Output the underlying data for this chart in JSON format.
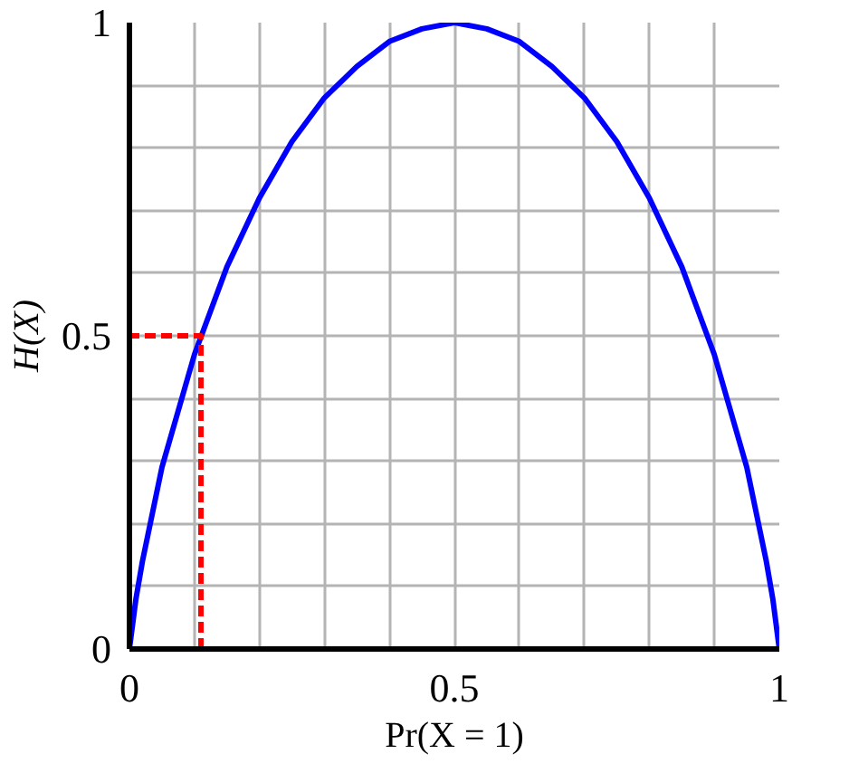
{
  "chart_data": {
    "type": "line",
    "xlabel": "Pr(X = 1)",
    "ylabel": "H(X)",
    "xlim": [
      0,
      1
    ],
    "ylim": [
      0,
      1
    ],
    "xticks": [
      0,
      {
        "value": 0.1,
        "label": null
      },
      {
        "value": 0.2,
        "label": null
      },
      {
        "value": 0.3,
        "label": null
      },
      {
        "value": 0.4,
        "label": null
      },
      0.5,
      {
        "value": 0.6,
        "label": null
      },
      {
        "value": 0.7,
        "label": null
      },
      {
        "value": 0.8,
        "label": null
      },
      {
        "value": 0.9,
        "label": null
      },
      1
    ],
    "yticks": [
      0,
      {
        "value": 0.1,
        "label": null
      },
      {
        "value": 0.2,
        "label": null
      },
      {
        "value": 0.3,
        "label": null
      },
      {
        "value": 0.4,
        "label": null
      },
      0.5,
      {
        "value": 0.6,
        "label": null
      },
      {
        "value": 0.7,
        "label": null
      },
      {
        "value": 0.8,
        "label": null
      },
      {
        "value": 0.9,
        "label": null
      },
      1
    ],
    "grid": true,
    "series": [
      {
        "color": "#0000ff",
        "line_style": "solid",
        "x": [
          0,
          0.01,
          0.02,
          0.05,
          0.1,
          0.15,
          0.2,
          0.25,
          0.3,
          0.35,
          0.4,
          0.45,
          0.5,
          0.55,
          0.6,
          0.65,
          0.7,
          0.75,
          0.8,
          0.85,
          0.9,
          0.95,
          0.98,
          0.99,
          1
        ],
        "values": [
          0,
          0.08,
          0.14,
          0.29,
          0.47,
          0.61,
          0.72,
          0.81,
          0.88,
          0.93,
          0.97,
          0.99,
          1,
          0.99,
          0.97,
          0.93,
          0.88,
          0.81,
          0.72,
          0.61,
          0.47,
          0.29,
          0.14,
          0.08,
          0
        ]
      },
      {
        "color": "#ff0000",
        "line_style": "dashed",
        "x": [
          0.11,
          0.11,
          0
        ],
        "values": [
          0,
          0.5,
          0.5
        ]
      }
    ]
  }
}
